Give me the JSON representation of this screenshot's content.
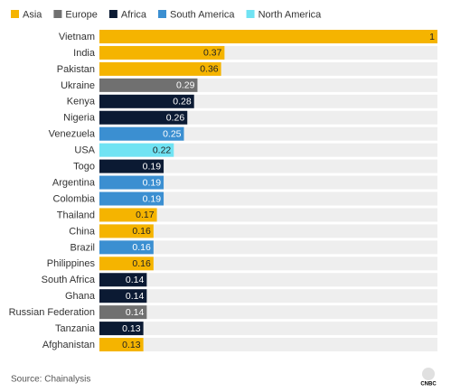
{
  "chart_data": {
    "type": "barh",
    "legend": [
      {
        "name": "Asia",
        "color": "#f5b400"
      },
      {
        "name": "Europe",
        "color": "#707070"
      },
      {
        "name": "Africa",
        "color": "#0b1a33"
      },
      {
        "name": "South America",
        "color": "#3b8fd1"
      },
      {
        "name": "North America",
        "color": "#70e3f3"
      }
    ],
    "categories": [
      "Vietnam",
      "India",
      "Pakistan",
      "Ukraine",
      "Kenya",
      "Nigeria",
      "Venezuela",
      "USA",
      "Togo",
      "Argentina",
      "Colombia",
      "Thailand",
      "China",
      "Brazil",
      "Philippines",
      "South Africa",
      "Ghana",
      "Russian Federation",
      "Tanzania",
      "Afghanistan"
    ],
    "values": [
      1,
      0.37,
      0.36,
      0.29,
      0.28,
      0.26,
      0.25,
      0.22,
      0.19,
      0.19,
      0.19,
      0.17,
      0.16,
      0.16,
      0.16,
      0.14,
      0.14,
      0.14,
      0.13,
      0.13
    ],
    "colors": [
      "#f5b400",
      "#f5b400",
      "#f5b400",
      "#707070",
      "#0b1a33",
      "#0b1a33",
      "#3b8fd1",
      "#70e3f3",
      "#0b1a33",
      "#3b8fd1",
      "#3b8fd1",
      "#f5b400",
      "#f5b400",
      "#3b8fd1",
      "#f5b400",
      "#0b1a33",
      "#0b1a33",
      "#707070",
      "#0b1a33",
      "#f5b400"
    ],
    "xlim": [
      0,
      1
    ],
    "source": "Source: Chainalysis",
    "logo": "CNBC"
  }
}
